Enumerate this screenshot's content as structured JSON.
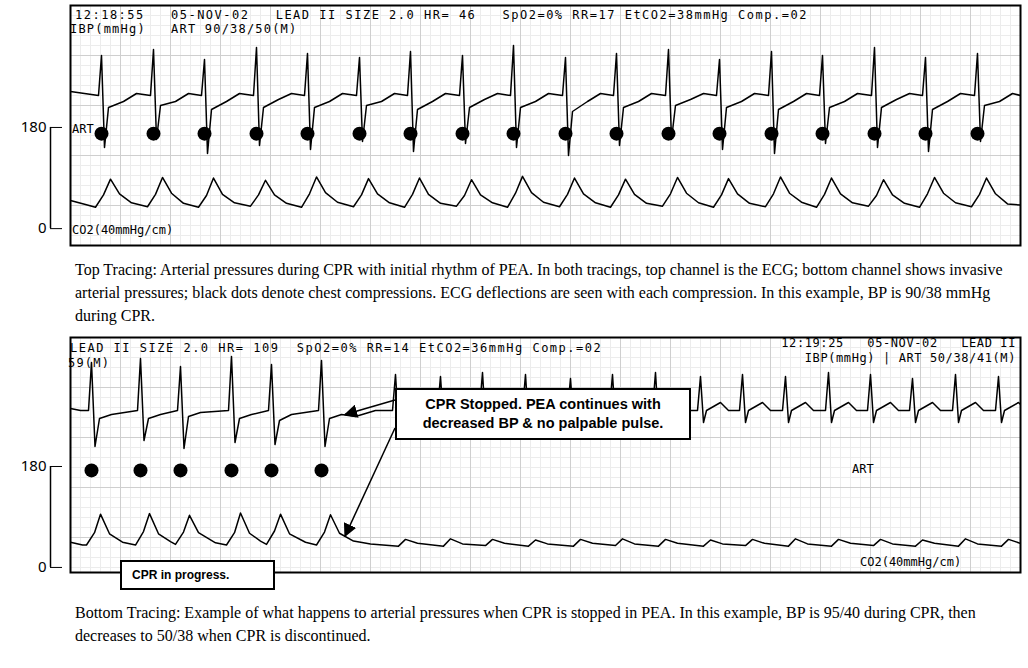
{
  "chart_data": [
    {
      "type": "line",
      "header": [
        "12:18:55   05-NOV-02   LEAD II SIZE 2.0 HR= 46   SpO2=0% RR=17 EtCO2=38mmHg Comp.=02",
        "IBP(mmHg)   ART 90/38/50(M)"
      ],
      "channel_labels": [
        "ART",
        "CO2(40mmHg/cm)"
      ],
      "caption": "Top Tracing: Arterial pressures during CPR with initial rhythm of PEA. In both tracings, top channel is the ECG; bottom channel shows invasive arterial pressures; black dots denote chest compressions. ECG deflections are seen with each compression.  In this example, BP is 90/38 mmHg during CPR.",
      "xlim": [
        0,
        95
      ],
      "ylim": [
        -30,
        397
      ],
      "yticks": [
        0,
        180
      ],
      "y2lim": [
        -7.5,
        4.5
      ],
      "y2ticks": [],
      "tick_labels": "y",
      "series": [
        {
          "name": "LEAD II",
          "type": "line",
          "axis": "y2",
          "color": "#000000",
          "x": [
            0,
            2.8,
            3.1,
            3.4,
            3.8,
            5.3,
            6.6,
            8.0,
            8.3,
            8.6,
            9.0,
            10.5,
            11.8,
            13.1,
            13.4,
            13.7,
            14.1,
            15.6,
            16.9,
            18.3,
            18.6,
            18.9,
            19.3,
            20.8,
            22.1,
            23.4,
            23.7,
            24.0,
            24.4,
            25.9,
            27.2,
            28.6,
            28.9,
            29.2,
            29.6,
            31.1,
            32.4,
            33.7,
            34.0,
            34.3,
            34.7,
            36.2,
            37.5,
            38.9,
            39.2,
            39.5,
            39.9,
            41.4,
            42.7,
            44.0,
            44.3,
            44.6,
            45.0,
            46.5,
            47.8,
            49.2,
            49.5,
            49.8,
            50.2,
            51.7,
            53.0,
            54.3,
            54.6,
            54.9,
            55.3,
            56.8,
            58.1,
            59.5,
            59.8,
            60.1,
            60.5,
            62.0,
            63.3,
            64.6,
            64.9,
            65.2,
            65.6,
            67.1,
            68.4,
            69.8,
            70.1,
            70.4,
            70.8,
            72.3,
            73.6,
            74.9,
            75.2,
            75.5,
            75.9,
            77.4,
            78.7,
            80.1,
            80.4,
            80.7,
            81.1,
            82.6,
            83.9,
            85.2,
            85.5,
            85.8,
            86.2,
            87.7,
            89.0,
            90.4,
            90.7,
            91.0,
            91.4,
            92.9,
            94.2,
            95
          ],
          "values": [
            0.2,
            0,
            2.0,
            -2.6,
            -0.6,
            -0.3,
            0.1,
            0,
            2.3,
            -2.2,
            -0.5,
            -0.3,
            0.1,
            0,
            1.8,
            -2.9,
            -0.7,
            -0.3,
            0.1,
            0,
            2.4,
            -2.5,
            -0.6,
            -0.2,
            0.1,
            0,
            2.1,
            -2.7,
            -0.6,
            -0.3,
            0.1,
            0,
            1.9,
            -2.3,
            -0.5,
            -0.3,
            0.1,
            0,
            2.2,
            -2.8,
            -0.7,
            -0.3,
            0.1,
            0,
            2.0,
            -2.4,
            -0.6,
            -0.2,
            0.1,
            0,
            2.5,
            -2.6,
            -0.6,
            -0.3,
            0.1,
            0,
            1.9,
            -3.0,
            -0.8,
            -0.3,
            0.1,
            0,
            2.1,
            -2.5,
            -0.6,
            -0.3,
            0.1,
            0,
            2.3,
            -2.2,
            -0.5,
            -0.2,
            0.1,
            0,
            1.8,
            -2.7,
            -0.6,
            -0.3,
            0.1,
            0,
            2.2,
            -2.9,
            -0.7,
            -0.3,
            0.1,
            0,
            2.0,
            -2.4,
            -0.6,
            -0.3,
            0.1,
            0,
            2.4,
            -2.6,
            -0.6,
            -0.2,
            0.1,
            0,
            1.9,
            -2.8,
            -0.7,
            -0.3,
            0.1,
            0,
            2.1,
            -2.3,
            -0.5,
            -0.3,
            0.1,
            0
          ]
        },
        {
          "name": "chest compressions",
          "type": "scatter",
          "marker": "circle",
          "color": "#000000",
          "x": [
            3.1,
            8.3,
            13.4,
            18.6,
            23.7,
            28.9,
            34.0,
            39.2,
            44.3,
            49.5,
            54.6,
            59.8,
            64.9,
            70.1,
            75.2,
            80.4,
            85.5,
            90.7
          ],
          "values": [
            169,
            169,
            169,
            169,
            169,
            169,
            169,
            169,
            169,
            169,
            169,
            169,
            169,
            169,
            169,
            169,
            169,
            169
          ]
        },
        {
          "name": "ART",
          "type": "line",
          "color": "#000000",
          "x": [
            0,
            1.5,
            2.5,
            3.3,
            4.0,
            4.9,
            6.1,
            7.7,
            8.5,
            9.2,
            10.1,
            11.3,
            12.8,
            13.6,
            14.3,
            15.2,
            16.4,
            18.0,
            18.8,
            19.5,
            20.4,
            21.6,
            23.1,
            23.9,
            24.6,
            25.5,
            26.7,
            28.3,
            29.1,
            29.8,
            30.7,
            31.9,
            33.4,
            34.2,
            34.9,
            35.8,
            37.0,
            38.6,
            39.4,
            40.1,
            41.0,
            42.2,
            43.7,
            44.5,
            45.2,
            46.1,
            47.3,
            48.9,
            49.7,
            50.4,
            51.3,
            52.5,
            54.0,
            54.8,
            55.5,
            56.4,
            57.6,
            59.2,
            60.0,
            60.7,
            61.6,
            62.8,
            64.3,
            65.1,
            65.8,
            66.7,
            67.9,
            69.5,
            70.3,
            71.0,
            71.9,
            73.1,
            74.6,
            75.4,
            76.1,
            77.0,
            78.2,
            79.8,
            80.6,
            81.3,
            82.2,
            83.4,
            84.9,
            85.7,
            86.4,
            87.3,
            88.5,
            90.1,
            90.9,
            91.6,
            92.5,
            93.7,
            95
          ],
          "values": [
            50,
            43,
            38,
            60,
            88,
            62,
            46,
            39,
            61,
            91,
            63,
            45,
            38,
            59,
            90,
            61,
            46,
            40,
            60,
            86,
            60,
            45,
            38,
            62,
            92,
            64,
            47,
            39,
            60,
            89,
            62,
            46,
            38,
            61,
            90,
            61,
            45,
            40,
            59,
            87,
            60,
            46,
            38,
            63,
            93,
            64,
            47,
            39,
            61,
            90,
            62,
            46,
            38,
            60,
            88,
            61,
            45,
            40,
            62,
            91,
            63,
            46,
            38,
            60,
            89,
            62,
            45,
            39,
            62,
            92,
            63,
            47,
            38,
            61,
            90,
            62,
            46,
            40,
            59,
            87,
            60,
            45,
            38,
            62,
            91,
            63,
            46,
            39,
            61,
            90,
            62,
            44,
            42
          ]
        }
      ]
    },
    {
      "type": "line",
      "header": [
        "LEAD II SIZE 2.0 HR= 109  SpO2=0% RR=14 EtCO2=36mmHg Comp.=02",
        "59(M)"
      ],
      "header_right": [
        "12:19:25   05-NOV-02   LEAD II",
        "IBP(mmHg) | ART 50/38/41(M)"
      ],
      "channel_labels": [
        "ART",
        "CO2(40mmHg/cm)"
      ],
      "annotations": [
        {
          "text": "CPR Stopped. PEA continues with decreased BP & no palpable pulse.",
          "x": 27.5
        },
        {
          "text": "CPR in progress."
        }
      ],
      "caption": "Bottom Tracing: Example of what happens to arterial pressures when CPR is stopped in PEA. In this example, BP is 95/40 during CPR, then decreases to 50/38 when CPR is discontinued.",
      "xlim": [
        0,
        95
      ],
      "ylim": [
        -9,
        410
      ],
      "yticks": [
        0,
        180
      ],
      "y2lim": [
        -8.1,
        3.65
      ],
      "y2ticks": [],
      "tick_labels": "y",
      "series": [
        {
          "name": "LEAD II",
          "type": "line",
          "axis": "y2",
          "color": "#000000",
          "x": [
            0,
            1.0,
            1.8,
            2.1,
            2.45,
            2.9,
            4.1,
            6.7,
            7.0,
            7.35,
            7.8,
            9.0,
            10.7,
            11.0,
            11.35,
            11.8,
            13.0,
            15.8,
            16.1,
            16.45,
            16.9,
            18.1,
            19.8,
            20.1,
            20.45,
            20.9,
            22.1,
            24.8,
            25.1,
            25.45,
            25.9,
            27.1,
            28.5,
            30.5,
            32.2,
            32.5,
            32.8,
            33.1,
            34.5,
            35.3,
            36.7,
            37.0,
            37.3,
            37.6,
            39.0,
            39.8,
            40.9,
            41.2,
            41.5,
            41.8,
            43.2,
            44.0,
            45.2,
            45.5,
            45.8,
            46.1,
            47.5,
            48.3,
            49.7,
            50.0,
            50.3,
            50.6,
            52.0,
            52.8,
            53.9,
            54.2,
            54.5,
            54.8,
            56.2,
            57.0,
            58.2,
            58.5,
            58.8,
            59.1,
            60.5,
            61.3,
            62.7,
            63.0,
            63.3,
            63.6,
            65.0,
            65.8,
            66.9,
            67.2,
            67.5,
            67.8,
            69.2,
            70.0,
            71.2,
            71.5,
            71.8,
            72.1,
            73.5,
            74.3,
            75.5,
            75.8,
            76.1,
            76.4,
            77.8,
            78.6,
            79.7,
            80.0,
            80.3,
            80.6,
            82.0,
            82.8,
            83.9,
            84.2,
            84.5,
            84.8,
            86.2,
            87.0,
            88.2,
            88.5,
            88.8,
            89.1,
            90.5,
            91.3,
            92.5,
            92.8,
            93.1,
            93.4,
            94.8,
            95.0
          ],
          "values": [
            0.1,
            0,
            0,
            2.4,
            -1.8,
            -0.4,
            -0.2,
            0,
            2.6,
            -1.5,
            -0.4,
            -0.2,
            0,
            2.2,
            -1.9,
            -0.3,
            -0.1,
            0,
            2.7,
            -1.6,
            -0.4,
            -0.2,
            0,
            2.3,
            -1.7,
            -0.5,
            -0.2,
            0,
            2.5,
            -1.8,
            -0.4,
            -0.2,
            -0.3,
            0,
            0,
            1.8,
            -0.6,
            0,
            0.4,
            0,
            0,
            1.7,
            -0.6,
            0,
            0.4,
            0,
            0,
            1.9,
            -0.6,
            0,
            0.4,
            0,
            0,
            1.8,
            -0.6,
            0,
            0.4,
            0,
            0,
            1.6,
            -0.6,
            0,
            0.4,
            0,
            0,
            1.8,
            -0.6,
            0,
            0.4,
            0,
            0,
            1.9,
            -0.6,
            0,
            0.4,
            0,
            0,
            1.7,
            -0.6,
            0,
            0.4,
            0,
            0,
            1.8,
            -0.6,
            0,
            0.4,
            0,
            0,
            1.7,
            -0.6,
            0,
            0.4,
            0,
            0,
            1.9,
            -0.6,
            0,
            0.4,
            0,
            0,
            1.8,
            -0.6,
            0,
            0.4,
            0,
            0,
            1.6,
            -0.6,
            0,
            0.4,
            0,
            0,
            1.8,
            -0.6,
            0,
            0.4,
            0,
            0,
            1.7,
            -0.6,
            0,
            0.4,
            0.3
          ]
        },
        {
          "name": "chest compressions",
          "type": "scatter",
          "marker": "circle",
          "color": "#000000",
          "x": [
            2.1,
            7.0,
            11.0,
            16.1,
            20.1,
            25.1
          ],
          "values": [
            173,
            173,
            173,
            173,
            173,
            173
          ]
        },
        {
          "name": "ART",
          "type": "line",
          "color": "#000000",
          "x": [
            0,
            1.2,
            1.6,
            2.4,
            3.0,
            3.9,
            5.2,
            6.5,
            7.3,
            7.9,
            8.8,
            10.0,
            10.5,
            11.3,
            11.9,
            12.8,
            14.5,
            15.6,
            16.4,
            17.0,
            17.9,
            19.0,
            19.6,
            20.4,
            21.0,
            21.9,
            23.5,
            24.6,
            25.4,
            26.0,
            26.9,
            28.3,
            30.0,
            32.8,
            33.5,
            34.7,
            37.3,
            38.0,
            39.2,
            41.5,
            42.2,
            43.4,
            45.8,
            46.5,
            47.7,
            50.3,
            51.0,
            52.2,
            54.5,
            55.2,
            56.4,
            58.8,
            59.5,
            60.7,
            63.3,
            64.0,
            65.2,
            67.5,
            68.2,
            69.4,
            71.8,
            72.5,
            73.7,
            76.1,
            76.8,
            78.0,
            80.3,
            81.0,
            82.2,
            84.5,
            85.2,
            86.4,
            88.8,
            89.5,
            90.7,
            93.1,
            93.8,
            95.0
          ],
          "values": [
            45,
            40,
            40,
            62,
            95,
            60,
            45,
            40,
            64,
            96,
            60,
            46,
            41,
            63,
            93,
            62,
            44,
            40,
            62,
            97,
            61,
            47,
            41,
            65,
            95,
            60,
            45,
            40,
            63,
            94,
            61,
            47,
            42,
            38,
            50,
            43,
            38,
            51,
            42,
            39,
            50,
            43,
            38,
            49,
            42,
            38,
            50,
            43,
            39,
            51,
            42,
            38,
            50,
            43,
            38,
            49,
            42,
            39,
            50,
            43,
            38,
            51,
            42,
            38,
            50,
            43,
            39,
            50,
            42,
            38,
            49,
            43,
            38,
            51,
            42,
            38,
            50,
            43
          ]
        }
      ]
    }
  ]
}
